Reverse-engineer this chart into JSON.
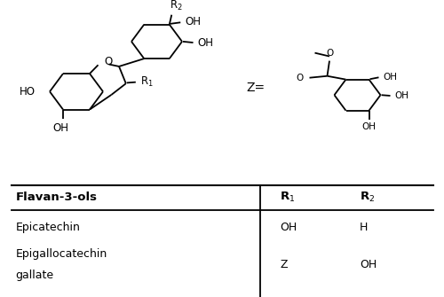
{
  "background_color": "#ffffff",
  "fig_width": 5.0,
  "fig_height": 3.35,
  "dpi": 100,
  "lw": 1.3,
  "fs": 8.5,
  "fs_small": 7.5,
  "table_header": [
    "Flavan-3-ols",
    "R1",
    "R2"
  ],
  "table_rows": [
    [
      "Epicatechin",
      "OH",
      "H"
    ],
    [
      "Epigallocatechin\ngallate",
      "Z",
      "OH"
    ]
  ]
}
